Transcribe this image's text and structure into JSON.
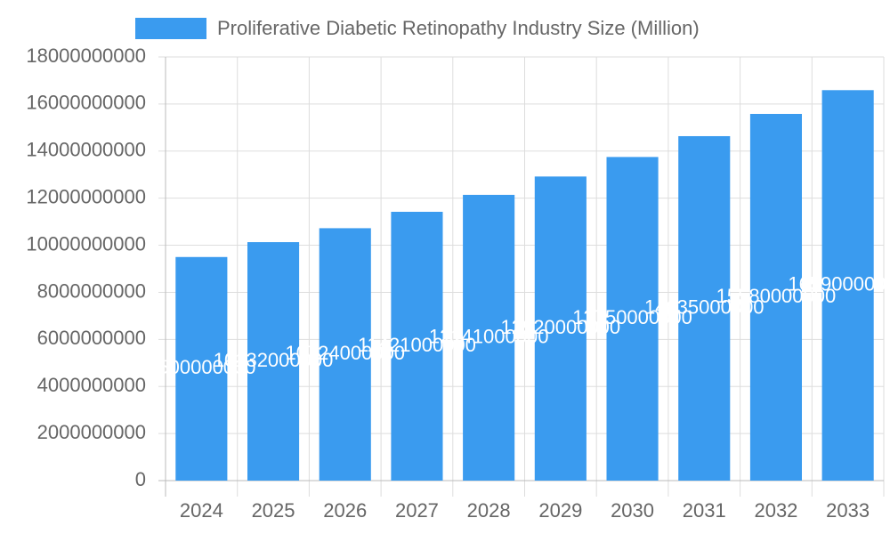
{
  "chart_data": {
    "type": "bar",
    "legend_label": "Proliferative Diabetic Retinopathy Industry Size (Million)",
    "categories": [
      "2024",
      "2025",
      "2026",
      "2027",
      "2028",
      "2029",
      "2030",
      "2031",
      "2032",
      "2033"
    ],
    "values": [
      9500000000,
      10132000000,
      10724000000,
      11421000000,
      12141000000,
      12920000000,
      13750000000,
      14635000000,
      15580000000,
      16590000000
    ],
    "color": "#3a9bef",
    "ylim": [
      0,
      18000000000
    ],
    "yticks": [
      0,
      2000000000,
      4000000000,
      6000000000,
      8000000000,
      10000000000,
      12000000000,
      14000000000,
      16000000000,
      18000000000
    ],
    "grid": true
  }
}
